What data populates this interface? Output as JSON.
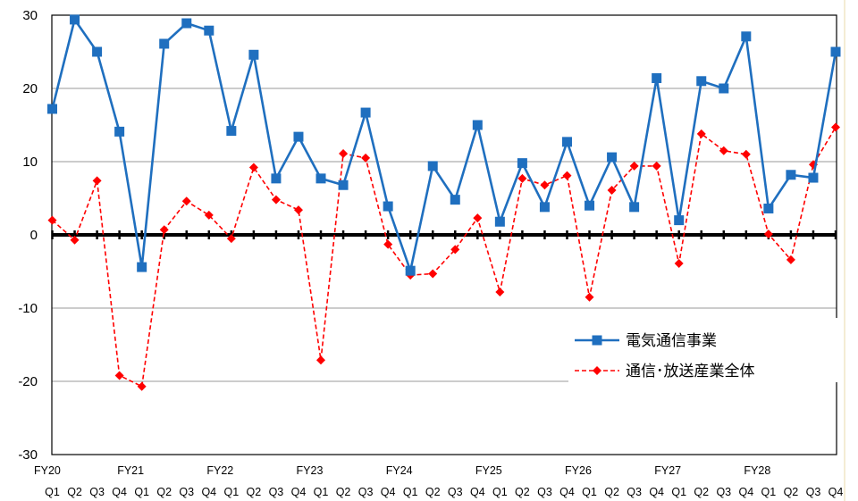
{
  "chart_data": {
    "type": "line",
    "title": "",
    "xlabel": "",
    "ylabel": "",
    "ylim": [
      -30,
      30
    ],
    "yticks": [
      30,
      20,
      10,
      0,
      -10,
      -20,
      -30
    ],
    "grid": "horizontal",
    "legend_position": "lower-right",
    "fiscal_years": [
      "FY20",
      "FY21",
      "FY22",
      "FY23",
      "FY24",
      "FY25",
      "FY26",
      "FY27",
      "FY28"
    ],
    "quarters": [
      "Q1",
      "Q2",
      "Q3",
      "Q4",
      "Q1",
      "Q2",
      "Q3",
      "Q4",
      "Q1",
      "Q2",
      "Q3",
      "Q4",
      "Q1",
      "Q2",
      "Q3",
      "Q4",
      "Q1",
      "Q2",
      "Q3",
      "Q4",
      "Q1",
      "Q2",
      "Q3",
      "Q4",
      "Q1",
      "Q2",
      "Q3",
      "Q4",
      "Q1",
      "Q2",
      "Q3",
      "Q4",
      "Q1",
      "Q2",
      "Q3",
      "Q4"
    ],
    "series": [
      {
        "name": "電気通信事業",
        "color": "#1f6fbf",
        "marker": "square",
        "line": "solid",
        "values": [
          17.2,
          29.4,
          25.0,
          14.1,
          -4.4,
          26.1,
          28.9,
          27.9,
          14.2,
          24.6,
          7.7,
          13.4,
          7.7,
          6.8,
          16.7,
          3.9,
          -4.9,
          9.4,
          4.8,
          15.0,
          1.8,
          9.8,
          3.8,
          12.7,
          4.0,
          10.6,
          3.8,
          21.4,
          2.0,
          21.0,
          20.0,
          27.1,
          3.6,
          8.2,
          7.8,
          25.0
        ]
      },
      {
        "name": "通信･放送産業全体",
        "color": "#ff0000",
        "marker": "diamond",
        "line": "dashed",
        "values": [
          2.0,
          -0.7,
          7.4,
          -19.2,
          -20.7,
          0.7,
          4.6,
          2.7,
          -0.5,
          9.2,
          4.8,
          3.4,
          -17.1,
          11.1,
          10.5,
          -1.3,
          -5.5,
          -5.3,
          -2.0,
          2.3,
          -7.8,
          7.7,
          6.8,
          8.1,
          -8.5,
          6.1,
          9.4,
          9.4,
          -3.9,
          13.8,
          11.5,
          11.0,
          0.1,
          -3.4,
          9.6,
          14.7
        ]
      }
    ]
  }
}
